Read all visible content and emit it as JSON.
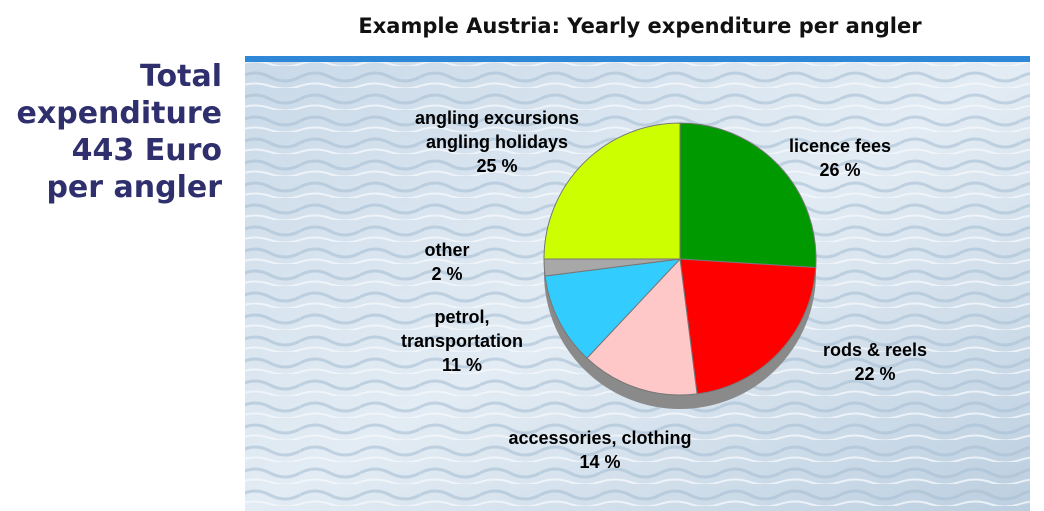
{
  "chart_data": {
    "type": "pie",
    "title": "Example Austria:  Yearly expenditure per angler",
    "side_text": [
      "Total",
      "expenditure",
      "443 Euro",
      "per angler"
    ],
    "categories": [
      "licence fees",
      "rods & reels",
      "accessories, clothing",
      "petrol,\ntransportation",
      "other",
      "angling excursions\nangling holidays"
    ],
    "values": [
      26,
      22,
      14,
      11,
      2,
      25
    ],
    "value_labels": [
      "26 %",
      "22 %",
      "14 %",
      "11 %",
      "2 %",
      "25 %"
    ],
    "colors": [
      "#009a00",
      "#ff0000",
      "#ffc8c8",
      "#33ccff",
      "#a8a8a8",
      "#ccff00"
    ]
  }
}
